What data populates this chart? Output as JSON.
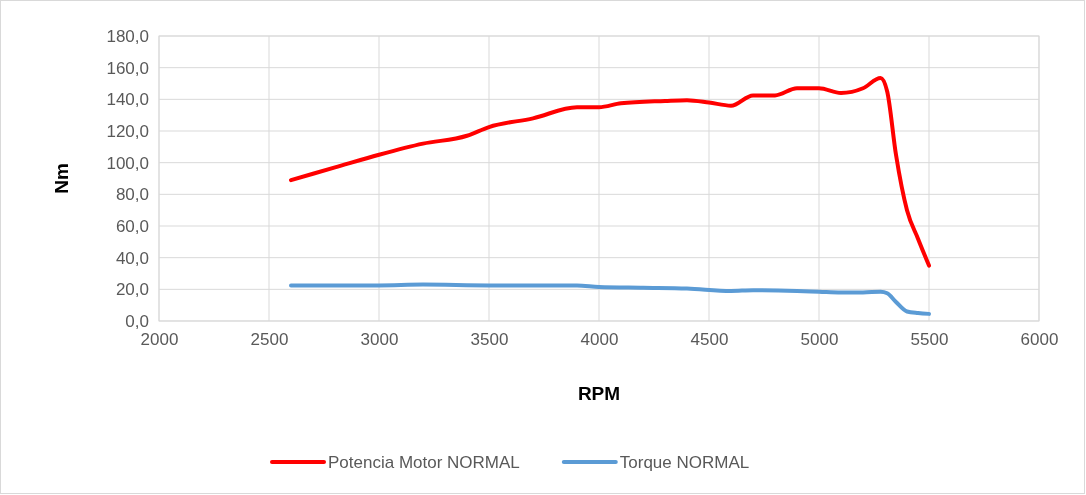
{
  "chart_data": {
    "type": "line",
    "xlabel": "RPM",
    "ylabel": "Nm",
    "xlim": [
      2000,
      6000
    ],
    "xticks": [
      2000,
      2500,
      3000,
      3500,
      4000,
      4500,
      5000,
      5500,
      6000
    ],
    "ylim": [
      0,
      180
    ],
    "yticks": [
      {
        "value": 0,
        "label": "0,0"
      },
      {
        "value": 20,
        "label": "20,0"
      },
      {
        "value": 40,
        "label": "40,0"
      },
      {
        "value": 60,
        "label": "60,0"
      },
      {
        "value": 80,
        "label": "80,0"
      },
      {
        "value": 100,
        "label": "100,0"
      },
      {
        "value": 120,
        "label": "120,0"
      },
      {
        "value": 140,
        "label": "140,0"
      },
      {
        "value": 160,
        "label": "160,0"
      },
      {
        "value": 180,
        "label": "180,0"
      }
    ],
    "grid": true,
    "legend": "bottom",
    "marker": "none",
    "line_style": "solid",
    "series": [
      {
        "name": "Potencia Motor NORMAL",
        "color": "#ff0000",
        "x": [
          2600,
          2800,
          3000,
          3200,
          3400,
          3500,
          3700,
          3900,
          4000,
          4100,
          4300,
          4400,
          4500,
          4600,
          4700,
          4800,
          4900,
          5000,
          5100,
          5200,
          5280,
          5310,
          5350,
          5400,
          5450,
          5500
        ],
        "values": [
          89,
          97,
          105,
          112,
          117,
          122.5,
          128,
          135,
          135,
          137.5,
          139,
          139.5,
          138,
          136,
          142.5,
          142.5,
          147,
          147,
          144,
          147,
          153.5,
          145,
          105,
          70,
          52,
          35
        ]
      },
      {
        "name": "Torque NORMAL",
        "color": "#5b9bd5",
        "x": [
          2600,
          3000,
          3200,
          3500,
          3900,
          4000,
          4200,
          4400,
          4600,
          4700,
          4900,
          5000,
          5100,
          5200,
          5280,
          5310,
          5350,
          5400,
          5450,
          5500
        ],
        "values": [
          22.5,
          22.5,
          23,
          22.5,
          22.5,
          21.5,
          21,
          20.5,
          19,
          19.5,
          19,
          18.5,
          18,
          18,
          18.5,
          17.5,
          12,
          6,
          5,
          4.5
        ]
      }
    ]
  }
}
